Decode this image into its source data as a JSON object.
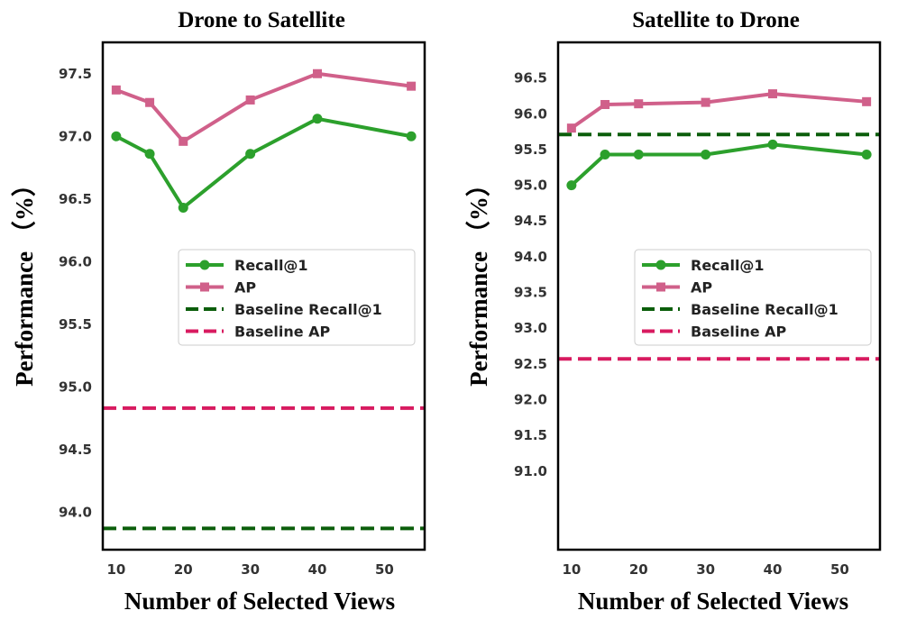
{
  "chart_data": [
    {
      "type": "line",
      "title": "Drone to Satellite",
      "xlabel": "Number of Selected Views",
      "ylabel": "Performance （%）",
      "x": [
        10,
        15,
        20,
        30,
        40,
        54
      ],
      "xticks": [
        10,
        20,
        30,
        40,
        50
      ],
      "xlim": [
        8,
        56
      ],
      "yticks": [
        94.0,
        94.5,
        95.0,
        95.5,
        96.0,
        96.5,
        97.0,
        97.5
      ],
      "ytick_labels": [
        "94.0",
        "94.5",
        "95.0",
        "95.5",
        "96.0",
        "96.5",
        "97.0",
        "97.5"
      ],
      "ylim": [
        93.7,
        97.75
      ],
      "series": [
        {
          "name": "Recall@1",
          "values": [
            97.0,
            96.86,
            96.43,
            96.86,
            97.14,
            97.0
          ],
          "color": "#2ca02c",
          "marker": "circle",
          "dash": false
        },
        {
          "name": "AP",
          "values": [
            97.37,
            97.27,
            96.96,
            97.29,
            97.5,
            97.4
          ],
          "color": "#d0608a",
          "marker": "square",
          "dash": false
        }
      ],
      "baselines": [
        {
          "name": "Baseline Recall@1",
          "value": 93.87,
          "color": "#0b5e0b"
        },
        {
          "name": "Baseline AP",
          "value": 94.83,
          "color": "#d81b60"
        }
      ],
      "legend_location": "center-right"
    },
    {
      "type": "line",
      "title": "Satellite to Drone",
      "xlabel": "Number of Selected Views",
      "ylabel": "Performance （%）",
      "x": [
        10,
        15,
        20,
        30,
        40,
        54
      ],
      "xticks": [
        10,
        20,
        30,
        40,
        50
      ],
      "xlim": [
        8,
        56
      ],
      "yticks": [
        91.0,
        91.5,
        92.0,
        92.5,
        93.0,
        93.5,
        94.0,
        94.5,
        95.0,
        95.5,
        96.0,
        96.5
      ],
      "ytick_labels": [
        "91.0",
        "91.5",
        "92.0",
        "92.5",
        "93.0",
        "93.5",
        "94.0",
        "94.5",
        "95.0",
        "95.5",
        "96.0",
        "96.5"
      ],
      "ylim": [
        89.9,
        97.0
      ],
      "series": [
        {
          "name": "Recall@1",
          "values": [
            95.0,
            95.43,
            95.43,
            95.43,
            95.57,
            95.43
          ],
          "color": "#2ca02c",
          "marker": "circle",
          "dash": false
        },
        {
          "name": "AP",
          "values": [
            95.8,
            96.13,
            96.14,
            96.16,
            96.28,
            96.17
          ],
          "color": "#d0608a",
          "marker": "square",
          "dash": false
        }
      ],
      "baselines": [
        {
          "name": "Baseline Recall@1",
          "value": 95.71,
          "color": "#0b5e0b"
        },
        {
          "name": "Baseline AP",
          "value": 92.57,
          "color": "#d81b60"
        }
      ],
      "legend_location": "center-right"
    }
  ]
}
